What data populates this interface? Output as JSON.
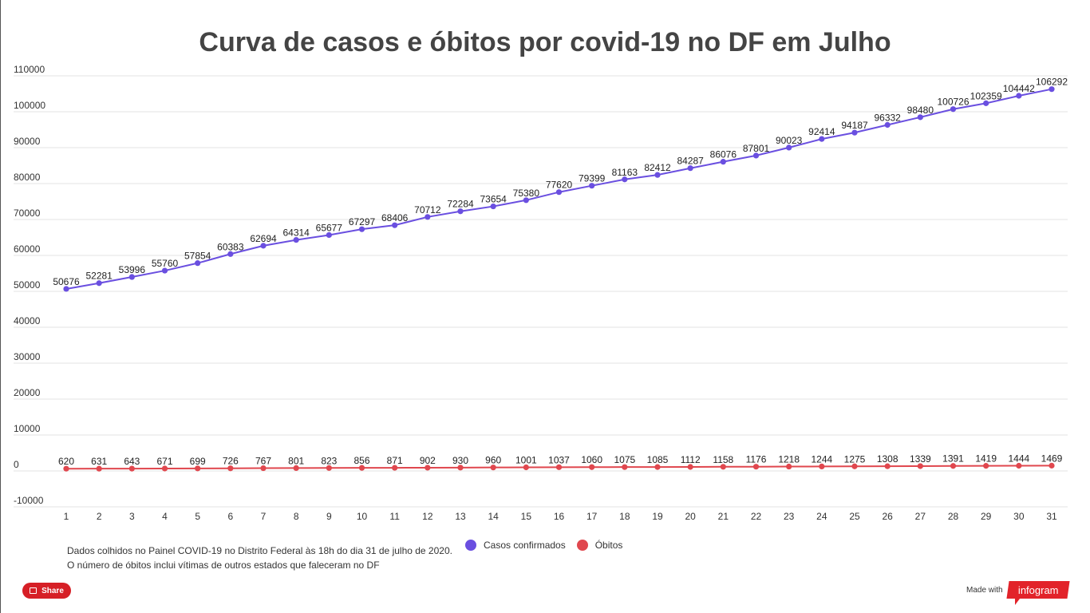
{
  "title": "Curva de casos e óbitos por covid-19 no DF em Julho",
  "chart_data": {
    "type": "line",
    "title": "Curva de casos e óbitos por covid-19 no DF em Julho",
    "xlabel": "",
    "ylabel": "",
    "ylim": [
      -10000,
      110000
    ],
    "yticks": [
      "110000",
      "100000",
      "90000",
      "80000",
      "70000",
      "60000",
      "50000",
      "40000",
      "30000",
      "20000",
      "10000",
      "0",
      "-10000"
    ],
    "categories": [
      "1",
      "2",
      "3",
      "4",
      "5",
      "6",
      "7",
      "8",
      "9",
      "10",
      "11",
      "12",
      "13",
      "14",
      "15",
      "16",
      "17",
      "18",
      "19",
      "20",
      "21",
      "22",
      "23",
      "24",
      "25",
      "26",
      "27",
      "28",
      "29",
      "30",
      "31"
    ],
    "grid": true,
    "legend_position": "bottom",
    "series": [
      {
        "name": "Casos confirmados",
        "color": "#6a4fe0",
        "values": [
          50676,
          52281,
          53996,
          55760,
          57854,
          60383,
          62694,
          64314,
          65677,
          67297,
          68406,
          70712,
          72284,
          73654,
          75380,
          77620,
          79399,
          81163,
          82412,
          84287,
          86076,
          87801,
          90023,
          92414,
          94187,
          96332,
          98480,
          100726,
          102359,
          104442,
          106292
        ]
      },
      {
        "name": "Óbitos",
        "color": "#e0474e",
        "values": [
          620,
          631,
          643,
          671,
          699,
          726,
          767,
          801,
          823,
          856,
          871,
          902,
          930,
          960,
          1001,
          1037,
          1060,
          1075,
          1085,
          1112,
          1158,
          1176,
          1218,
          1244,
          1275,
          1308,
          1339,
          1391,
          1419,
          1444,
          1469
        ]
      }
    ]
  },
  "note": {
    "line1": "Dados colhidos no Painel COVID-19 no Distrito Federal às 18h do dia 31 de julho de 2020.",
    "line2": "O número de óbitos inclui vítimas de outros estados que faleceram no DF"
  },
  "share_label": "Share",
  "made_with": "Made with",
  "brand": "infogram"
}
